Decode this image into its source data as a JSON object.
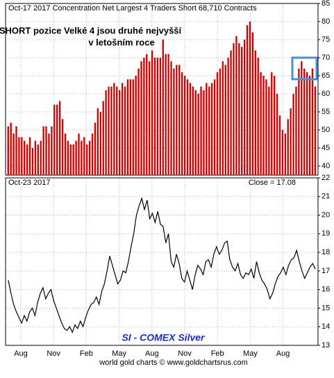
{
  "chart_data": [
    {
      "type": "bar",
      "title": "Oct-17 2017   Concentration Net Largest 4 Traders Short 68,710 Contracts",
      "annotations": [
        "SHORT pozice Velké 4 jsou druhé nejvyšší",
        "v letošním roce"
      ],
      "color": "#d40000",
      "values": [
        51,
        52,
        49,
        51,
        48,
        48,
        47,
        46,
        48,
        45,
        47,
        46,
        47,
        51,
        51,
        49,
        51,
        57,
        57,
        58,
        53,
        49,
        47,
        46,
        46,
        47,
        49,
        47,
        48,
        46,
        47,
        49,
        52,
        56,
        55,
        58,
        61,
        62,
        62,
        63,
        62,
        61,
        63,
        62,
        64,
        64,
        64,
        65,
        67,
        69,
        70,
        71,
        69,
        72,
        70,
        70,
        70,
        75,
        71,
        71,
        69,
        67,
        68,
        68,
        66,
        65,
        64,
        63,
        62,
        61,
        60,
        62,
        61,
        63,
        62,
        63,
        64,
        66,
        67,
        69,
        68,
        70,
        72,
        74,
        76,
        74,
        73,
        75,
        79,
        80,
        77,
        72,
        70,
        66,
        65,
        64,
        62,
        66,
        65,
        60,
        54,
        50,
        49,
        53,
        56,
        60,
        62,
        67,
        69,
        67,
        66,
        65,
        67,
        62
      ],
      "ylim": [
        37.5,
        85
      ],
      "yticks": [
        40,
        45,
        50,
        55,
        60,
        65,
        70,
        75,
        80,
        85
      ],
      "grid": true
    },
    {
      "type": "line",
      "title": "Oct-23  2017",
      "subtitle": "Close = 17.08",
      "annotations": [
        "SI  -  COMEX Silver"
      ],
      "footer": "world gold charts © www.goldchartsrus.com",
      "color": "#000000",
      "values": [
        16.5,
        15.8,
        15.2,
        14.8,
        14.5,
        14.2,
        14.6,
        14.3,
        14.8,
        15.0,
        14.6,
        15.3,
        15.8,
        16.1,
        15.5,
        15.8,
        16.0,
        15.4,
        15.0,
        14.6,
        14.2,
        13.9,
        13.8,
        14.0,
        13.7,
        14.1,
        13.9,
        14.3,
        14.0,
        14.5,
        14.9,
        15.2,
        15.3,
        15.6,
        15.2,
        15.9,
        16.3,
        17.0,
        17.8,
        17.3,
        16.8,
        16.3,
        16.5,
        17.0,
        16.9,
        17.5,
        18.3,
        19.0,
        20.0,
        20.5,
        20.9,
        20.3,
        20.8,
        19.8,
        20.1,
        19.6,
        20.2,
        19.5,
        19.4,
        18.5,
        19.0,
        17.5,
        17.2,
        17.9,
        17.4,
        16.6,
        16.4,
        17.0,
        16.5,
        16.0,
        16.8,
        17.3,
        17.1,
        16.8,
        17.5,
        17.6,
        17.2,
        17.9,
        18.3,
        17.9,
        18.1,
        18.5,
        18.6,
        17.6,
        17.2,
        17.0,
        17.4,
        16.8,
        16.6,
        16.9,
        16.8,
        17.1,
        16.6,
        17.5,
        16.9,
        16.5,
        16.3,
        16.0,
        15.5,
        15.8,
        16.3,
        16.7,
        16.9,
        17.2,
        16.8,
        17.3,
        17.6,
        17.7,
        18.1,
        17.5,
        17.0,
        16.6,
        16.9,
        17.2,
        17.4,
        17.1
      ],
      "xticklabels": [
        "Aug",
        "Nov",
        "Feb",
        "May",
        "Aug",
        "Nov",
        "Feb",
        "May",
        "Aug"
      ],
      "ylim": [
        13,
        22
      ],
      "yticks": [
        13,
        14,
        15,
        16,
        17,
        18,
        19,
        20,
        21,
        22
      ],
      "grid": true
    }
  ]
}
